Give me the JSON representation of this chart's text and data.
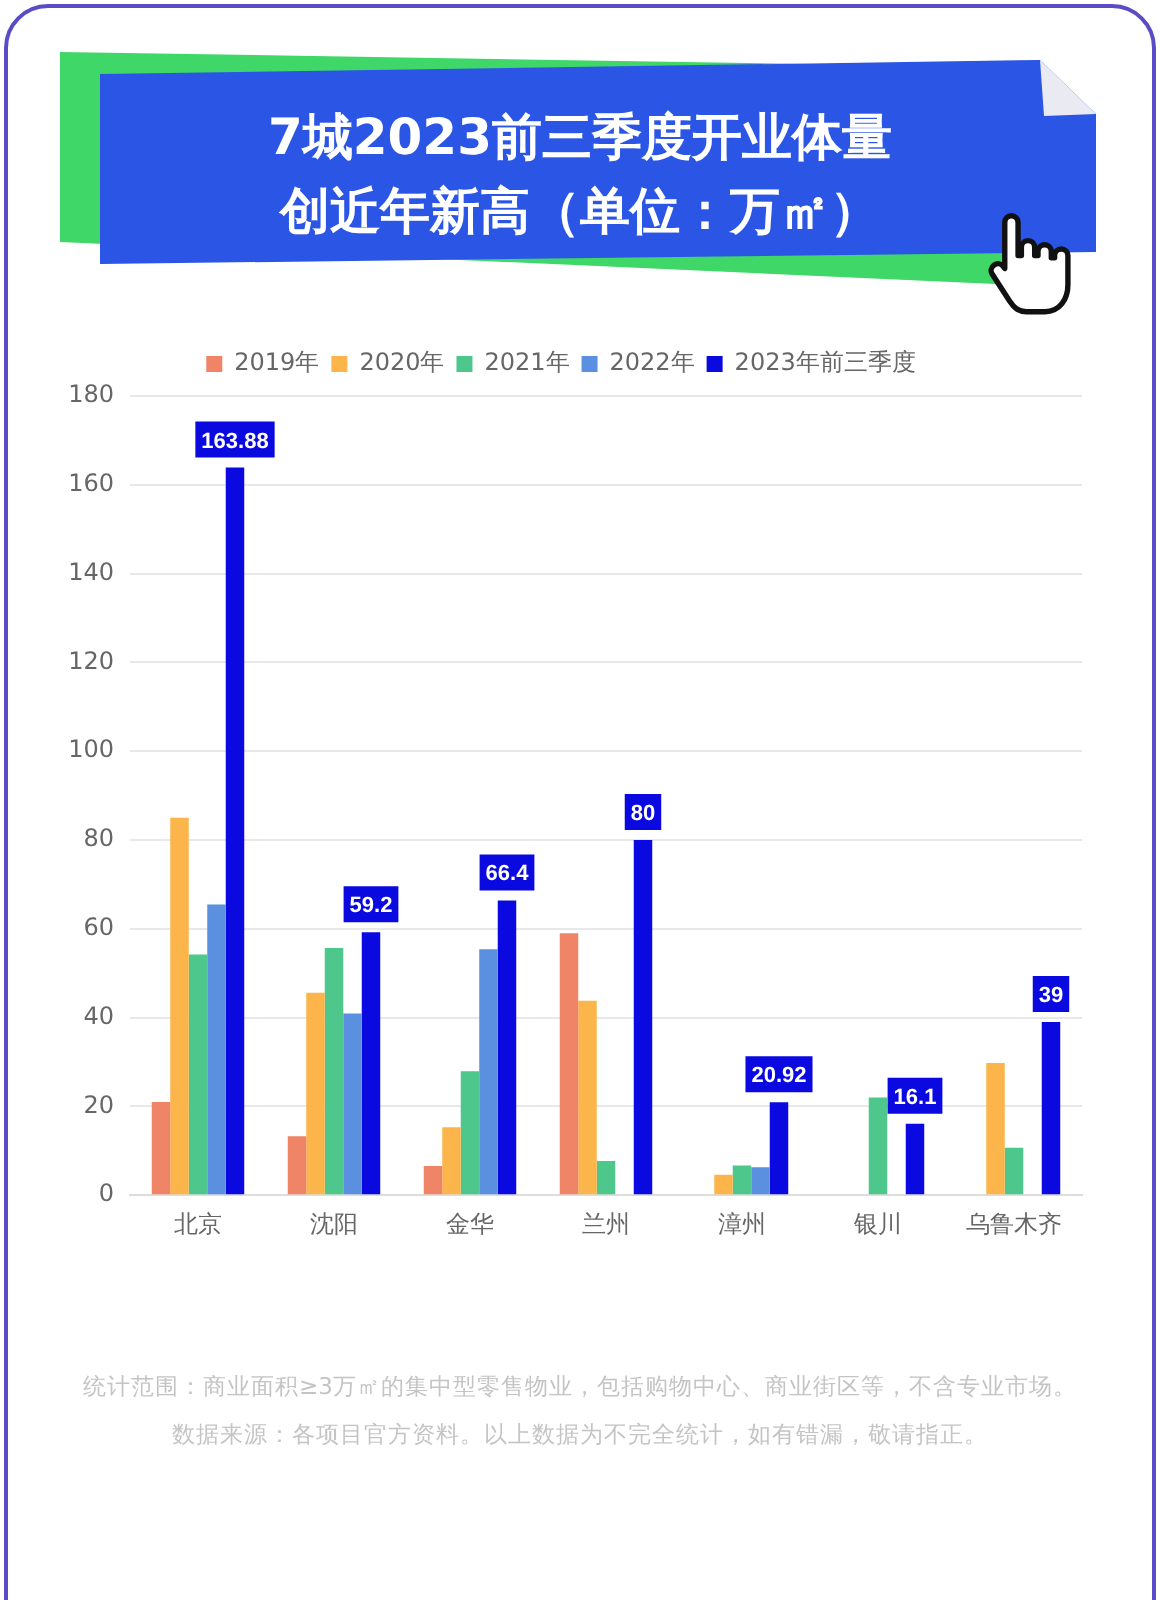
{
  "chart_data": {
    "type": "bar",
    "title": "7城2023前三季度开业体量创近年新高（单位：万㎡）",
    "categories": [
      "北京",
      "沈阳",
      "金华",
      "兰州",
      "漳州",
      "银川",
      "乌鲁木齐"
    ],
    "series": [
      {
        "name": "2019年",
        "color": "#ef8466",
        "values": [
          21,
          13.3,
          6.6,
          59,
          null,
          null,
          null
        ]
      },
      {
        "name": "2020年",
        "color": "#fbb54a",
        "values": [
          85,
          45.6,
          15.3,
          43.8,
          4.6,
          null,
          29.8
        ]
      },
      {
        "name": "2021年",
        "color": "#4dc78c",
        "values": [
          54.2,
          55.7,
          27.9,
          7.7,
          6.7,
          22,
          10.7
        ]
      },
      {
        "name": "2022年",
        "color": "#5b8fe0",
        "values": [
          65.5,
          40.9,
          55.4,
          null,
          6.3,
          null,
          null
        ]
      },
      {
        "name": "2023年前三季度",
        "color": "#0a0ae0",
        "values": [
          163.88,
          59.2,
          66.4,
          80,
          20.92,
          16.1,
          39
        ],
        "value_labels": [
          "163.88",
          "59.2",
          "66.4",
          "80",
          "20.92",
          "16.1",
          "39"
        ]
      }
    ],
    "ylim": [
      0,
      180
    ],
    "yticks": [
      0,
      20,
      40,
      60,
      80,
      100,
      120,
      140,
      160,
      180
    ],
    "grid": "y",
    "legend": "top",
    "annotations": [
      "统计范围：商业面积≥3万㎡的集中型零售物业，包括购物中心、商业街区等，不含专业市场。",
      "数据来源：各项目官方资料。以上数据为不完全统计，如有错漏，敬请指正。"
    ]
  }
}
